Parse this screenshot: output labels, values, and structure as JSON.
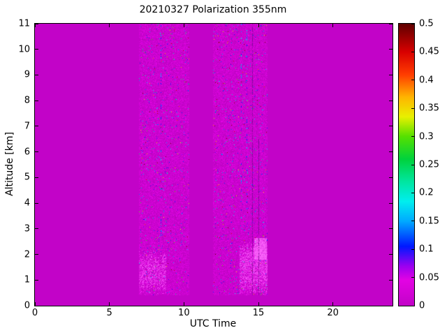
{
  "figure": {
    "background": "#ffffff"
  },
  "chart_data": {
    "type": "heatmap",
    "title": "20210327 Polarization 355nm",
    "xlabel": "UTC Time",
    "ylabel": "Altitude [km]",
    "xlim": [
      0,
      24
    ],
    "ylim": [
      0,
      11
    ],
    "xticks": [
      0,
      5,
      10,
      15,
      20
    ],
    "yticks": [
      0,
      1,
      2,
      3,
      4,
      5,
      6,
      7,
      8,
      9,
      10,
      11
    ],
    "grid": false,
    "background_value": 0,
    "background_color": "#c203c8",
    "palette": {
      "pink": "#ff5cff",
      "hot_pink": "#ff70ff",
      "dark_streak": "#6b0b8a",
      "axis_color": "#000000",
      "figure_background": "#ffffff"
    },
    "colorbar": {
      "min": 0,
      "max": 0.5,
      "ticks": [
        0,
        0.05,
        0.1,
        0.15,
        0.2,
        0.25,
        0.3,
        0.35,
        0.4,
        0.45,
        0.5
      ],
      "position": "right",
      "colormap": [
        {
          "v": 0,
          "c": "#c203c8"
        },
        {
          "v": 0.045,
          "c": "#e303e3"
        },
        {
          "v": 0.07,
          "c": "#9b00f0"
        },
        {
          "v": 0.105,
          "c": "#0018ff"
        },
        {
          "v": 0.15,
          "c": "#00aaff"
        },
        {
          "v": 0.185,
          "c": "#00eeee"
        },
        {
          "v": 0.22,
          "c": "#00e6a0"
        },
        {
          "v": 0.26,
          "c": "#00d23c"
        },
        {
          "v": 0.3,
          "c": "#55e000"
        },
        {
          "v": 0.335,
          "c": "#e8f000"
        },
        {
          "v": 0.37,
          "c": "#ffb400"
        },
        {
          "v": 0.41,
          "c": "#ff3c00"
        },
        {
          "v": 0.45,
          "c": "#d80000"
        },
        {
          "v": 0.5,
          "c": "#5f0000"
        }
      ]
    },
    "measurement_bands": [
      {
        "x_start": 7.0,
        "x_end": 10.35,
        "y_start": 0.4,
        "y_end": 11,
        "speck_probability": 0.02,
        "boundary_layer": {
          "x_start": 7.0,
          "x_end": 8.8,
          "y_top": 2.2,
          "intensity": 0.55
        }
      },
      {
        "x_start": 11.95,
        "x_end": 15.6,
        "y_start": 0.4,
        "y_end": 11,
        "speck_probability": 0.022,
        "boundary_layer": {
          "x_start": 13.75,
          "x_end": 15.6,
          "y_top": 2.55,
          "intensity": 0.7
        },
        "hot_spot": {
          "x_start": 14.7,
          "x_end": 15.55,
          "y_bottom": 1.8,
          "y_top": 2.65,
          "intensity": 1.0
        }
      }
    ],
    "streaks": [
      {
        "x": 8.45,
        "y_start": 2.6,
        "y_end": 11,
        "kind": "specks"
      },
      {
        "x": 13.85,
        "y_start": 2.6,
        "y_end": 11,
        "kind": "specks"
      },
      {
        "x": 14.2,
        "y_start": 3.0,
        "y_end": 11,
        "kind": "specks"
      },
      {
        "x": 14.6,
        "y_start": 0.4,
        "y_end": 11,
        "kind": "dark"
      },
      {
        "x": 15.02,
        "y_start": 0.4,
        "y_end": 6.5,
        "kind": "dark"
      }
    ]
  }
}
